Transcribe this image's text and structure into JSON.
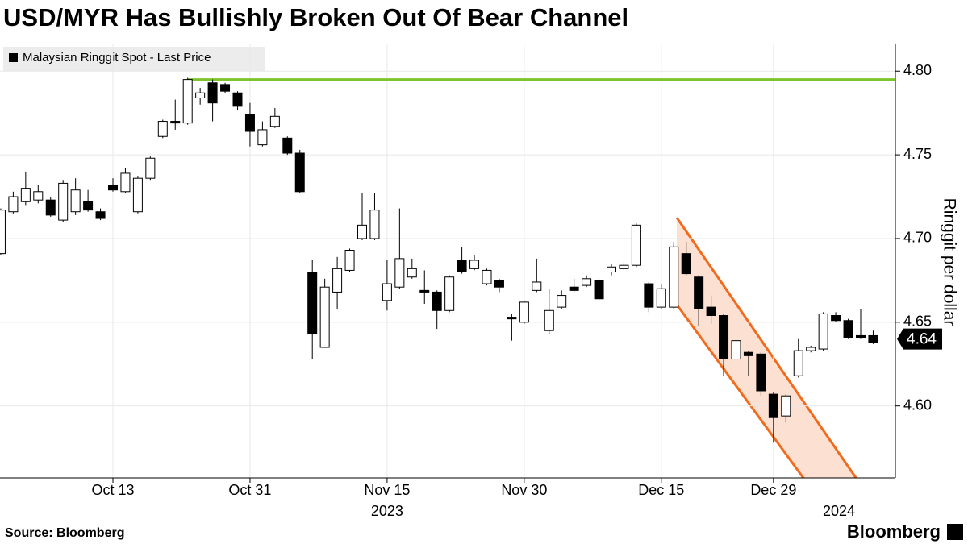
{
  "chart_data": {
    "type": "candlestick",
    "title": "USD/MYR Has Bullishly Broken Out Of Bear Channel",
    "legend": "Malaysian Ringgit Spot - Last Price",
    "y_axis_label": "Ringgit per dollar",
    "source": "Source: Bloomberg",
    "brand": "Bloomberg",
    "years": [
      "2023",
      "2024"
    ],
    "last_price": 4.64,
    "resistance": 4.795,
    "categories": [
      null,
      null,
      null,
      null,
      null,
      null,
      null,
      null,
      null,
      "Oct 13",
      null,
      null,
      null,
      null,
      null,
      null,
      null,
      null,
      null,
      null,
      "Oct 31",
      null,
      null,
      null,
      null,
      null,
      null,
      null,
      null,
      null,
      null,
      "Nov 15",
      null,
      null,
      null,
      null,
      null,
      null,
      null,
      null,
      null,
      null,
      "Nov 30",
      null,
      null,
      null,
      null,
      null,
      null,
      null,
      null,
      null,
      null,
      "Dec 15",
      null,
      null,
      null,
      null,
      null,
      null,
      null,
      null,
      "Dec 29",
      null,
      null,
      null,
      null,
      null,
      null,
      null,
      null
    ],
    "open": [
      4.691,
      4.716,
      4.722,
      4.723,
      4.723,
      4.711,
      4.716,
      4.722,
      4.716,
      4.732,
      4.728,
      4.716,
      4.736,
      4.761,
      4.77,
      4.769,
      4.784,
      4.793,
      4.792,
      4.787,
      4.774,
      4.756,
      4.767,
      4.76,
      4.751,
      4.68,
      4.635,
      4.668,
      4.681,
      4.7,
      4.7,
      4.663,
      4.671,
      4.677,
      4.669,
      4.668,
      4.657,
      4.687,
      4.682,
      4.673,
      4.675,
      4.653,
      4.65,
      4.669,
      4.645,
      4.659,
      4.671,
      4.672,
      4.675,
      4.68,
      4.682,
      4.684,
      4.673,
      4.659,
      4.659,
      4.691,
      4.677,
      4.659,
      4.654,
      4.628,
      4.632,
      4.631,
      4.607,
      4.594,
      4.618,
      4.633,
      4.634,
      4.654,
      4.651,
      4.642,
      4.642
    ],
    "high": [
      4.718,
      4.728,
      4.74,
      4.732,
      4.725,
      4.735,
      4.736,
      4.729,
      4.718,
      4.736,
      4.742,
      4.737,
      4.749,
      4.771,
      4.783,
      4.796,
      4.79,
      4.795,
      4.793,
      4.788,
      4.781,
      4.77,
      4.778,
      4.761,
      4.753,
      4.687,
      4.676,
      4.689,
      4.694,
      4.727,
      4.727,
      4.687,
      4.718,
      4.688,
      4.681,
      4.669,
      4.678,
      4.695,
      4.69,
      4.682,
      4.676,
      4.655,
      4.663,
      4.688,
      4.67,
      4.669,
      4.676,
      4.678,
      4.676,
      4.685,
      4.686,
      4.709,
      4.674,
      4.673,
      4.698,
      4.698,
      4.678,
      4.666,
      4.655,
      4.64,
      4.633,
      4.632,
      4.608,
      4.607,
      4.64,
      4.636,
      4.656,
      4.656,
      4.652,
      4.658,
      4.645
    ],
    "low": [
      4.69,
      4.715,
      4.72,
      4.721,
      4.713,
      4.71,
      4.714,
      4.716,
      4.711,
      4.728,
      4.727,
      4.715,
      4.735,
      4.76,
      4.765,
      4.768,
      4.78,
      4.77,
      4.787,
      4.777,
      4.755,
      4.755,
      4.766,
      4.75,
      4.727,
      4.628,
      4.635,
      4.658,
      4.68,
      4.699,
      4.699,
      4.657,
      4.67,
      4.676,
      4.661,
      4.646,
      4.656,
      4.679,
      4.681,
      4.672,
      4.668,
      4.639,
      4.649,
      4.668,
      4.643,
      4.658,
      4.668,
      4.671,
      4.663,
      4.678,
      4.681,
      4.683,
      4.656,
      4.658,
      4.658,
      4.678,
      4.648,
      4.649,
      4.618,
      4.609,
      4.618,
      4.606,
      4.578,
      4.59,
      4.617,
      4.632,
      4.633,
      4.65,
      4.64,
      4.64,
      4.637
    ],
    "close": [
      4.717,
      4.725,
      4.73,
      4.728,
      4.714,
      4.733,
      4.729,
      4.717,
      4.712,
      4.729,
      4.739,
      4.736,
      4.748,
      4.77,
      4.769,
      4.795,
      4.787,
      4.781,
      4.788,
      4.779,
      4.764,
      4.765,
      4.773,
      4.751,
      4.728,
      4.643,
      4.671,
      4.682,
      4.693,
      4.708,
      4.717,
      4.673,
      4.688,
      4.682,
      4.668,
      4.657,
      4.677,
      4.68,
      4.687,
      4.681,
      4.671,
      4.652,
      4.662,
      4.674,
      4.657,
      4.666,
      4.669,
      4.676,
      4.664,
      4.683,
      4.684,
      4.708,
      4.659,
      4.67,
      4.695,
      4.679,
      4.658,
      4.654,
      4.628,
      4.639,
      4.63,
      4.609,
      4.593,
      4.606,
      4.633,
      4.635,
      4.655,
      4.651,
      4.641,
      4.641,
      4.638
    ],
    "ylim": [
      4.557,
      4.816
    ],
    "yticks": [
      {
        "value": 4.6,
        "label": "4.60"
      },
      4.65,
      {
        "value": 4.7,
        "label": "4.70"
      },
      4.75,
      {
        "value": 4.8,
        "label": "4.80"
      }
    ],
    "grid": true,
    "up_color": "#ffffff",
    "down_color": "#000000",
    "resistance_color": "#7dc42a",
    "channel_color": "#f26b1d"
  }
}
